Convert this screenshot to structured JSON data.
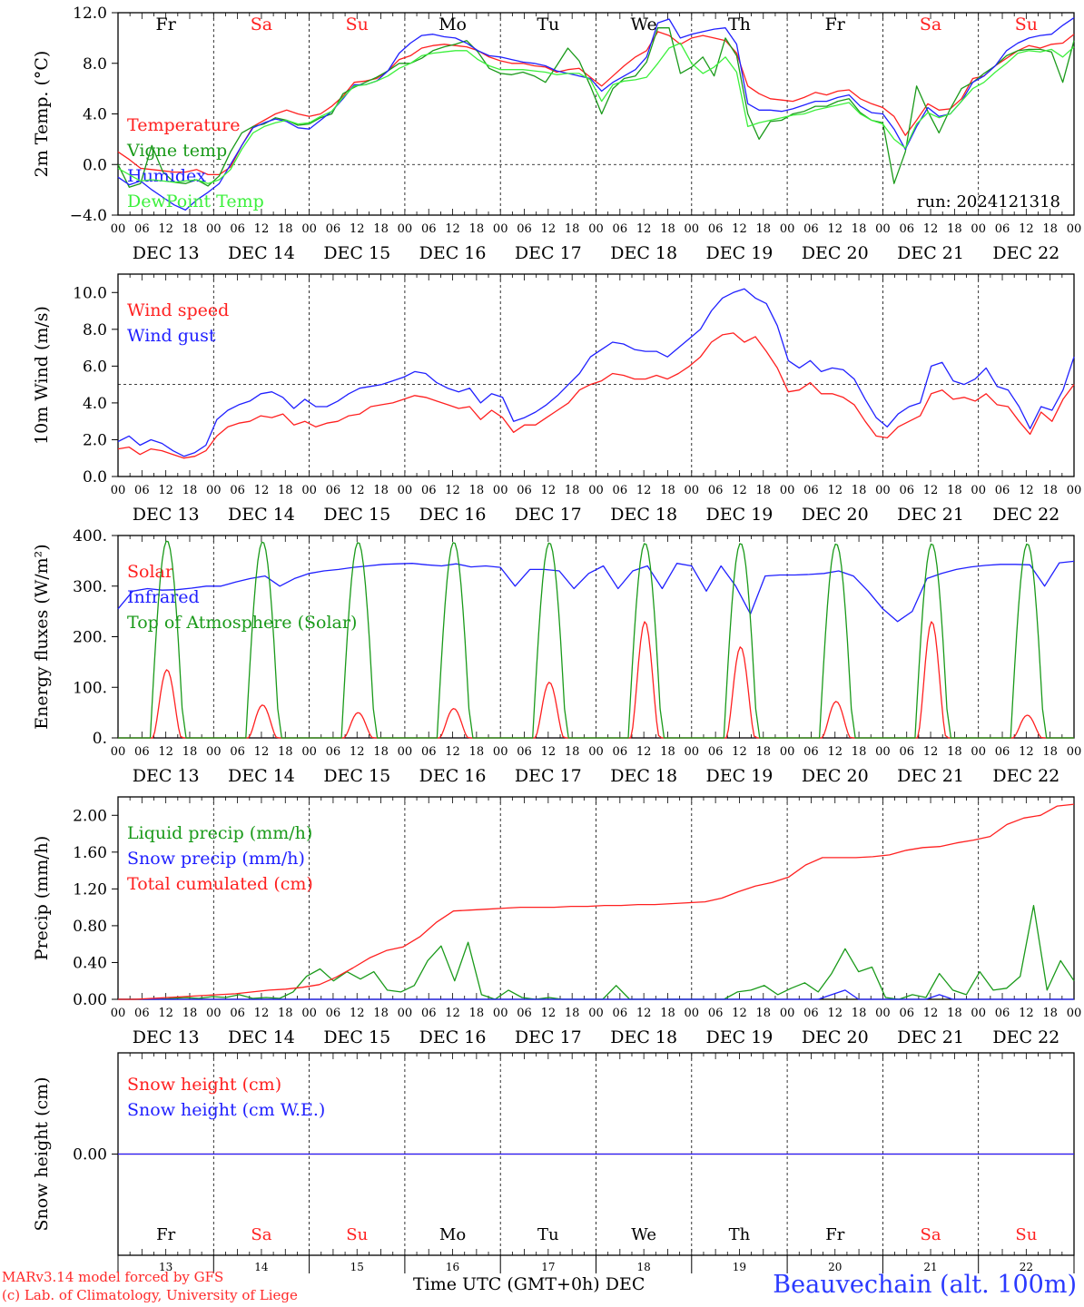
{
  "station": "Beauvechain (alt. 100m)",
  "credit_lines": [
    "MARv3.14 model forced by GFS",
    "(c) Lab. of Climatology, University of Liege"
  ],
  "time_axis_label": "Time UTC (GMT+0h) DEC",
  "hour_ticks": [
    "00",
    "06",
    "12",
    "18"
  ],
  "day_dates": [
    "DEC 13",
    "DEC 14",
    "DEC 15",
    "DEC 16",
    "DEC 17",
    "DEC 18",
    "DEC 19",
    "DEC 20",
    "DEC 21",
    "DEC 22"
  ],
  "day_names": [
    "Fr",
    "Sa",
    "Su",
    "Mo",
    "Tu",
    "We",
    "Th",
    "Fr",
    "Sa",
    "Su"
  ],
  "day_numbers": [
    "13",
    "14",
    "15",
    "16",
    "17",
    "18",
    "19",
    "20",
    "21",
    "22"
  ],
  "weekend_days": [
    "Sa",
    "Su"
  ],
  "colors": {
    "red": "#ff2020",
    "green": "#1a9a1a",
    "blue": "#2020ff",
    "lightgreen": "#3cf03c",
    "black": "#000000",
    "weekend": "#ff2020"
  },
  "chart_data": [
    {
      "type": "line",
      "ylabel": "2m Temp. (°C)",
      "ylim": [
        -4,
        12
      ],
      "yticks": [
        "−4.0",
        "0.0",
        "4.0",
        "8.0",
        "12.0"
      ],
      "ytick_values": [
        -4,
        0,
        4,
        8,
        12
      ],
      "ref_line": 0,
      "annotation": "run: 2024121318",
      "x": "hours since DEC 13 00 UTC, 3-hourly, 0..240",
      "series": [
        {
          "name": "Temperature",
          "color": "red",
          "values": [
            1.0,
            0.4,
            -0.3,
            -0.4,
            -0.5,
            -0.6,
            -0.6,
            -0.4,
            -0.8,
            -0.8,
            -0.2,
            1.5,
            3.0,
            3.5,
            4.0,
            4.3,
            4.0,
            3.8,
            4.0,
            4.6,
            5.4,
            6.5,
            6.6,
            6.8,
            7.4,
            8.3,
            8.6,
            9.2,
            9.4,
            9.5,
            9.4,
            9.3,
            9.0,
            8.5,
            8.2,
            8.0,
            8.0,
            7.8,
            7.7,
            7.3,
            7.5,
            7.6,
            6.9,
            6.2,
            7.0,
            7.8,
            8.5,
            9.0,
            10.5,
            10.2,
            9.5,
            10.0,
            10.2,
            10.0,
            9.8,
            8.8,
            6.2,
            5.6,
            5.2,
            5.1,
            5.0,
            5.3,
            5.7,
            5.5,
            5.8,
            5.9,
            5.2,
            4.8,
            4.5,
            3.8,
            2.3,
            3.5,
            4.8,
            4.3,
            4.4,
            5.2,
            6.8,
            7.0,
            7.8,
            8.4,
            9.0,
            9.4,
            9.2,
            9.5,
            9.6,
            10.3
          ]
        },
        {
          "name": "Vigne temp",
          "color": "green",
          "values": [
            0.0,
            -1.8,
            -1.5,
            1.5,
            -0.6,
            -1.4,
            -1.5,
            -1.2,
            -1.7,
            -0.9,
            1.0,
            2.5,
            3.0,
            3.2,
            3.7,
            3.5,
            3.1,
            3.2,
            3.7,
            4.0,
            5.6,
            6.1,
            6.5,
            6.9,
            7.4,
            8.0,
            8.0,
            8.4,
            9.0,
            9.3,
            9.5,
            9.8,
            8.9,
            7.6,
            7.2,
            7.1,
            7.3,
            7.0,
            6.5,
            7.8,
            9.2,
            8.2,
            6.2,
            4.0,
            6.0,
            6.8,
            7.0,
            8.1,
            10.8,
            10.8,
            7.2,
            7.7,
            8.5,
            7.0,
            10.0,
            8.6,
            4.0,
            2.0,
            3.4,
            3.5,
            4.0,
            4.2,
            4.6,
            4.6,
            5.0,
            5.2,
            4.1,
            3.5,
            3.3,
            -1.5,
            1.0,
            6.2,
            4.2,
            2.5,
            4.4,
            6.0,
            6.5,
            7.2,
            7.8,
            8.6,
            9.0,
            9.1,
            9.1,
            8.9,
            6.5,
            9.8
          ]
        },
        {
          "name": "Humidex",
          "color": "blue",
          "values": [
            -1.0,
            -1.6,
            -1.3,
            -2.0,
            -2.6,
            -3.2,
            -3.6,
            -2.8,
            -2.2,
            -1.5,
            0.0,
            1.5,
            2.9,
            3.3,
            3.6,
            3.4,
            2.9,
            2.8,
            3.5,
            4.2,
            5.2,
            6.3,
            6.3,
            6.6,
            7.4,
            8.8,
            9.6,
            10.2,
            10.3,
            10.1,
            10.0,
            9.6,
            9.0,
            8.6,
            8.5,
            8.3,
            8.1,
            8.0,
            7.8,
            7.4,
            7.2,
            7.0,
            6.8,
            5.8,
            6.5,
            7.0,
            7.5,
            8.5,
            11.2,
            11.5,
            10.0,
            10.3,
            10.5,
            10.7,
            10.8,
            9.5,
            4.8,
            4.3,
            4.3,
            4.2,
            4.4,
            4.7,
            5.0,
            5.0,
            5.3,
            5.5,
            4.6,
            4.1,
            4.0,
            2.8,
            1.2,
            3.0,
            4.5,
            3.8,
            4.0,
            5.0,
            6.5,
            7.0,
            7.8,
            9.0,
            9.6,
            10.0,
            10.2,
            10.3,
            11.0,
            11.6
          ]
        },
        {
          "name": "DewPoint Temp",
          "color": "lightgreen",
          "values": [
            -0.3,
            -0.8,
            -1.3,
            -1.2,
            -1.3,
            -1.4,
            -1.3,
            -1.2,
            -1.5,
            -1.2,
            -0.4,
            1.2,
            2.5,
            3.0,
            3.3,
            3.5,
            3.2,
            3.3,
            3.8,
            4.2,
            5.3,
            6.2,
            6.3,
            6.6,
            7.0,
            7.6,
            8.0,
            8.6,
            8.8,
            8.9,
            9.0,
            9.0,
            8.3,
            7.8,
            7.5,
            7.5,
            7.5,
            7.4,
            7.3,
            7.1,
            7.2,
            7.2,
            6.7,
            5.0,
            6.3,
            6.6,
            6.7,
            6.9,
            8.0,
            9.2,
            9.6,
            8.0,
            7.2,
            7.7,
            8.5,
            7.3,
            3.0,
            3.3,
            3.5,
            3.7,
            3.9,
            4.0,
            4.3,
            4.5,
            4.7,
            4.9,
            4.0,
            3.5,
            3.2,
            2.0,
            1.3,
            3.2,
            4.1,
            3.7,
            4.0,
            5.0,
            6.0,
            6.5,
            7.3,
            8.0,
            8.8,
            9.0,
            8.9,
            9.1,
            8.5,
            9.3
          ]
        }
      ]
    },
    {
      "type": "line",
      "ylabel": "10m Wind (m/s)",
      "ylim": [
        0,
        11
      ],
      "yticks": [
        "0.0",
        "2.0",
        "4.0",
        "6.0",
        "8.0",
        "10.0"
      ],
      "ytick_values": [
        0,
        2,
        4,
        6,
        8,
        10
      ],
      "ref_line": 5,
      "series": [
        {
          "name": "Wind speed",
          "color": "red",
          "values": [
            1.5,
            1.6,
            1.2,
            1.5,
            1.4,
            1.2,
            1.0,
            1.1,
            1.4,
            2.2,
            2.7,
            2.9,
            3.0,
            3.3,
            3.2,
            3.4,
            2.8,
            3.0,
            2.7,
            2.9,
            3.0,
            3.3,
            3.4,
            3.8,
            3.9,
            4.0,
            4.2,
            4.4,
            4.3,
            4.1,
            3.9,
            3.7,
            3.8,
            3.1,
            3.6,
            3.2,
            2.4,
            2.8,
            2.8,
            3.2,
            3.6,
            4.0,
            4.7,
            5.0,
            5.2,
            5.6,
            5.5,
            5.3,
            5.3,
            5.5,
            5.3,
            5.6,
            6.0,
            6.5,
            7.3,
            7.7,
            7.8,
            7.3,
            7.6,
            6.8,
            5.9,
            4.6,
            4.7,
            5.1,
            4.5,
            4.5,
            4.3,
            3.9,
            3.0,
            2.2,
            2.1,
            2.7,
            3.0,
            3.3,
            4.5,
            4.7,
            4.2,
            4.3,
            4.1,
            4.5,
            3.9,
            3.8,
            3.0,
            2.3,
            3.5,
            3.0,
            4.2,
            5.0
          ]
        },
        {
          "name": "Wind gust",
          "color": "blue",
          "values": [
            1.9,
            2.2,
            1.7,
            2.0,
            1.8,
            1.4,
            1.1,
            1.3,
            1.7,
            3.1,
            3.6,
            3.9,
            4.1,
            4.5,
            4.6,
            4.3,
            3.7,
            4.2,
            3.8,
            3.8,
            4.1,
            4.5,
            4.8,
            4.9,
            5.0,
            5.2,
            5.4,
            5.7,
            5.6,
            5.1,
            4.8,
            4.6,
            4.8,
            4.0,
            4.5,
            4.3,
            3.0,
            3.2,
            3.5,
            3.9,
            4.4,
            5.0,
            5.6,
            6.5,
            6.9,
            7.3,
            7.2,
            6.9,
            6.8,
            6.8,
            6.5,
            7.0,
            7.5,
            8.0,
            9.0,
            9.7,
            10.0,
            10.2,
            9.7,
            9.4,
            8.2,
            6.3,
            5.9,
            6.3,
            5.7,
            5.9,
            5.8,
            5.3,
            4.2,
            3.2,
            2.7,
            3.4,
            3.8,
            4.0,
            6.0,
            6.2,
            5.2,
            5.0,
            5.3,
            5.9,
            4.9,
            4.7,
            3.8,
            2.6,
            3.8,
            3.6,
            4.7,
            6.5
          ]
        }
      ]
    },
    {
      "type": "line",
      "ylabel": "Energy fluxes (W/m²)",
      "ylim": [
        0,
        400
      ],
      "yticks": [
        "0.",
        "100.",
        "200.",
        "300.",
        "400."
      ],
      "ytick_values": [
        0,
        100,
        200,
        300,
        400
      ],
      "series": [
        {
          "name": "Solar",
          "color": "red",
          "peaks": [
            135,
            65,
            50,
            58,
            110,
            230,
            180,
            72,
            230,
            45
          ]
        },
        {
          "name": "Infrared",
          "color": "blue",
          "values": [
            255,
            290,
            295,
            292,
            293,
            296,
            300,
            300,
            308,
            315,
            320,
            300,
            315,
            325,
            330,
            333,
            337,
            340,
            343,
            344,
            345,
            342,
            340,
            344,
            338,
            340,
            337,
            300,
            333,
            333,
            330,
            295,
            325,
            340,
            295,
            330,
            340,
            295,
            345,
            340,
            290,
            340,
            300,
            245,
            320,
            322,
            322,
            323,
            325,
            330,
            320,
            290,
            255,
            230,
            250,
            315,
            325,
            333,
            338,
            341,
            343,
            343,
            342,
            300,
            346,
            349
          ]
        },
        {
          "name": "Top of Atmosphere (Solar)",
          "color": "green",
          "peaks": [
            390,
            388,
            387,
            387,
            386,
            385,
            385,
            384,
            384,
            384
          ]
        }
      ]
    },
    {
      "type": "line",
      "ylabel": "Precip (mm/h)",
      "ylim": [
        0,
        2.2
      ],
      "yticks": [
        "0.00",
        "0.40",
        "0.80",
        "1.20",
        "1.60",
        "2.00"
      ],
      "ytick_values": [
        0,
        0.4,
        0.8,
        1.2,
        1.6,
        2.0
      ],
      "series": [
        {
          "name": "Liquid precip (mm/h)",
          "color": "green",
          "values": [
            0,
            0,
            0,
            0,
            0.01,
            0.02,
            0.01,
            0.03,
            0.02,
            0.05,
            0.01,
            0.02,
            0.01,
            0.08,
            0.25,
            0.33,
            0.2,
            0.3,
            0.22,
            0.3,
            0.1,
            0.08,
            0.15,
            0.42,
            0.58,
            0.2,
            0.62,
            0.05,
            0,
            0.1,
            0.02,
            0,
            0.02,
            0,
            0,
            0,
            0,
            0.15,
            0,
            0,
            0,
            0,
            0,
            0,
            0,
            0,
            0.08,
            0.1,
            0.15,
            0.05,
            0.12,
            0.18,
            0.08,
            0.28,
            0.55,
            0.3,
            0.35,
            0.02,
            0,
            0.05,
            0.02,
            0.28,
            0.1,
            0.05,
            0.3,
            0.1,
            0.12,
            0.25,
            1.02,
            0.1,
            0.42,
            0.2
          ]
        },
        {
          "name": "Snow precip (mm/h)",
          "color": "blue",
          "values": [
            0,
            0,
            0,
            0,
            0,
            0,
            0,
            0,
            0,
            0,
            0,
            0,
            0,
            0,
            0,
            0,
            0,
            0,
            0,
            0,
            0,
            0,
            0,
            0,
            0,
            0,
            0,
            0,
            0,
            0,
            0,
            0,
            0,
            0,
            0,
            0,
            0,
            0,
            0,
            0,
            0,
            0,
            0,
            0,
            0,
            0,
            0,
            0,
            0,
            0,
            0,
            0,
            0,
            0.05,
            0.1,
            0,
            0,
            0,
            0,
            0,
            0,
            0.05,
            0,
            0,
            0,
            0,
            0,
            0,
            0,
            0,
            0,
            0
          ]
        },
        {
          "name": "Total cumulated (cm)",
          "color": "red",
          "values": [
            0,
            0,
            0.01,
            0.02,
            0.03,
            0.04,
            0.05,
            0.06,
            0.08,
            0.1,
            0.11,
            0.13,
            0.16,
            0.24,
            0.34,
            0.45,
            0.53,
            0.57,
            0.68,
            0.84,
            0.96,
            0.97,
            0.98,
            0.99,
            1.0,
            1.0,
            1.0,
            1.01,
            1.01,
            1.02,
            1.02,
            1.03,
            1.03,
            1.04,
            1.05,
            1.06,
            1.1,
            1.17,
            1.23,
            1.27,
            1.33,
            1.46,
            1.54,
            1.54,
            1.54,
            1.55,
            1.57,
            1.62,
            1.65,
            1.66,
            1.7,
            1.73,
            1.77,
            1.9,
            1.97,
            2.0,
            2.1,
            2.12
          ]
        }
      ]
    },
    {
      "type": "line",
      "ylabel": "Snow height (cm)",
      "yticks": [
        "0.00"
      ],
      "ytick_values": [
        0
      ],
      "series": [
        {
          "name": "Snow height (cm)",
          "color": "red",
          "values": [
            0,
            0
          ]
        },
        {
          "name": "Snow height (cm W.E.)",
          "color": "blue",
          "values": [
            0,
            0
          ]
        }
      ]
    }
  ]
}
